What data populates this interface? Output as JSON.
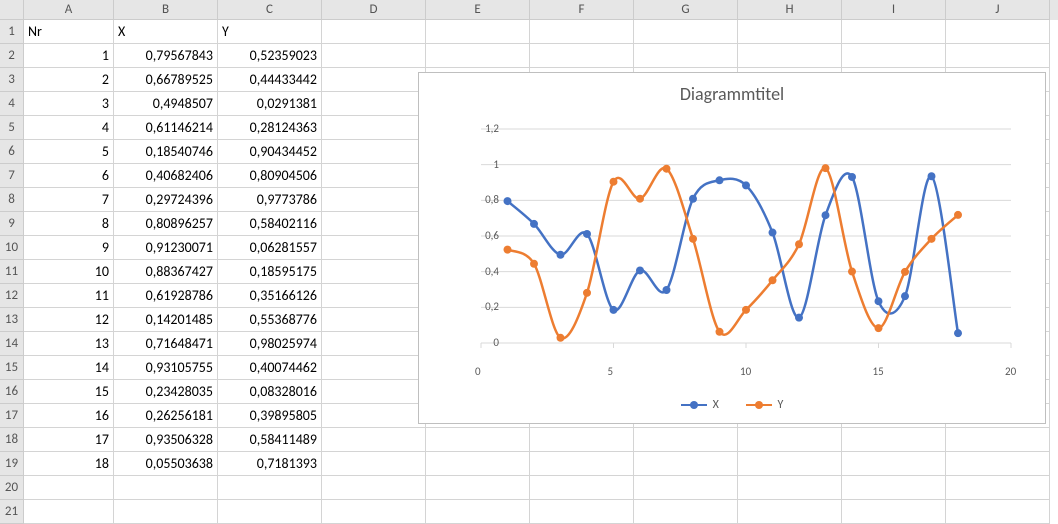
{
  "columns": {
    "widths": [
      90,
      104,
      104,
      104,
      104,
      104,
      104,
      104,
      104,
      104
    ],
    "labels": [
      "A",
      "B",
      "C",
      "D",
      "E",
      "F",
      "G",
      "H",
      "I",
      "J"
    ]
  },
  "row_count": 21,
  "headers": {
    "A": "Nr",
    "B": "X",
    "C": "Y"
  },
  "data_rows": [
    {
      "nr": 1,
      "x": "0,79567843",
      "y": "0,52359023"
    },
    {
      "nr": 2,
      "x": "0,66789525",
      "y": "0,44433442"
    },
    {
      "nr": 3,
      "x": "0,4948507",
      "y": "0,0291381"
    },
    {
      "nr": 4,
      "x": "0,61146214",
      "y": "0,28124363"
    },
    {
      "nr": 5,
      "x": "0,18540746",
      "y": "0,90434452"
    },
    {
      "nr": 6,
      "x": "0,40682406",
      "y": "0,80904506"
    },
    {
      "nr": 7,
      "x": "0,29724396",
      "y": "0,9773786"
    },
    {
      "nr": 8,
      "x": "0,80896257",
      "y": "0,58402116"
    },
    {
      "nr": 9,
      "x": "0,91230071",
      "y": "0,06281557"
    },
    {
      "nr": 10,
      "x": "0,88367427",
      "y": "0,18595175"
    },
    {
      "nr": 11,
      "x": "0,61928786",
      "y": "0,35166126"
    },
    {
      "nr": 12,
      "x": "0,14201485",
      "y": "0,55368776"
    },
    {
      "nr": 13,
      "x": "0,71648471",
      "y": "0,98025974"
    },
    {
      "nr": 14,
      "x": "0,93105755",
      "y": "0,40074462"
    },
    {
      "nr": 15,
      "x": "0,23428035",
      "y": "0,08328016"
    },
    {
      "nr": 16,
      "x": "0,26256181",
      "y": "0,39895805"
    },
    {
      "nr": 17,
      "x": "0,93506328",
      "y": "0,58411489"
    },
    {
      "nr": 18,
      "x": "0,05503638",
      "y": "0,7181393"
    }
  ],
  "chart": {
    "type": "line",
    "title": "Diagrammtitel",
    "title_fontsize": 18,
    "title_color": "#595959",
    "background_color": "#ffffff",
    "border_color": "#bfbfbf",
    "grid_color": "#d9d9d9",
    "axis_line_color": "#d9d9d9",
    "tick_color": "#595959",
    "tick_fontsize": 11,
    "x": {
      "min": 0,
      "max": 20,
      "step": 5
    },
    "y": {
      "min": 0,
      "max": 1.2,
      "step": 0.2
    },
    "marker_radius": 4,
    "line_width": 2.5,
    "legend": {
      "items": [
        {
          "label": "X",
          "color": "#4472c4"
        },
        {
          "label": "Y",
          "color": "#ed7d31"
        }
      ]
    },
    "series": [
      {
        "name": "X",
        "color": "#4472c4",
        "values": [
          0.79567843,
          0.66789525,
          0.4948507,
          0.61146214,
          0.18540746,
          0.40682406,
          0.29724396,
          0.80896257,
          0.91230071,
          0.88367427,
          0.61928786,
          0.14201485,
          0.71648471,
          0.93105755,
          0.23428035,
          0.26256181,
          0.93506328,
          0.05503638
        ]
      },
      {
        "name": "Y",
        "color": "#ed7d31",
        "values": [
          0.52359023,
          0.44433442,
          0.0291381,
          0.28124363,
          0.90434452,
          0.80904506,
          0.9773786,
          0.58402116,
          0.06281557,
          0.18595175,
          0.35166126,
          0.55368776,
          0.98025974,
          0.40074462,
          0.08328016,
          0.39895805,
          0.58411489,
          0.7181393
        ]
      }
    ]
  }
}
